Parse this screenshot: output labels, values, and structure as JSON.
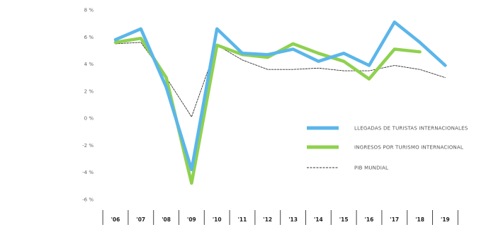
{
  "chart_data": {
    "type": "line",
    "categories": [
      "'06",
      "'07",
      "'08",
      "'09",
      "'10",
      "'11",
      "'12",
      "'13",
      "'14",
      "'15",
      "'16",
      "'17",
      "'18",
      "'19"
    ],
    "ylim": [
      -6,
      8
    ],
    "yticks": [
      8,
      6,
      4,
      2,
      0,
      -2,
      -4,
      -6
    ],
    "ytick_labels": [
      "8 %",
      "6 %",
      "4 %",
      "2 %",
      "0 %",
      "-2 %",
      "-4 %",
      "-6 %"
    ],
    "grid": false,
    "legend_position": "right",
    "series": [
      {
        "name": "LLEGADAS DE TURISTAS INTERNACIONALES",
        "color": "#5bb6ea",
        "style": "thick",
        "values": [
          5.8,
          6.6,
          2.3,
          -3.8,
          6.6,
          4.8,
          4.7,
          5.1,
          4.2,
          4.8,
          3.9,
          7.1,
          5.6,
          3.9
        ]
      },
      {
        "name": "INGRESOS POR TURISMO INTERNACIONAL",
        "color": "#8fd14f",
        "style": "thick",
        "values": [
          5.6,
          5.9,
          3.0,
          -4.8,
          5.4,
          4.7,
          4.5,
          5.5,
          4.8,
          4.2,
          2.9,
          5.1,
          4.9,
          null
        ]
      },
      {
        "name": "PIB MUNDIAL",
        "color": "#333333",
        "style": "dashed",
        "values": [
          5.5,
          5.6,
          3.0,
          0.1,
          5.4,
          4.3,
          3.6,
          3.6,
          3.7,
          3.5,
          3.5,
          3.9,
          3.6,
          3.0
        ]
      }
    ]
  }
}
